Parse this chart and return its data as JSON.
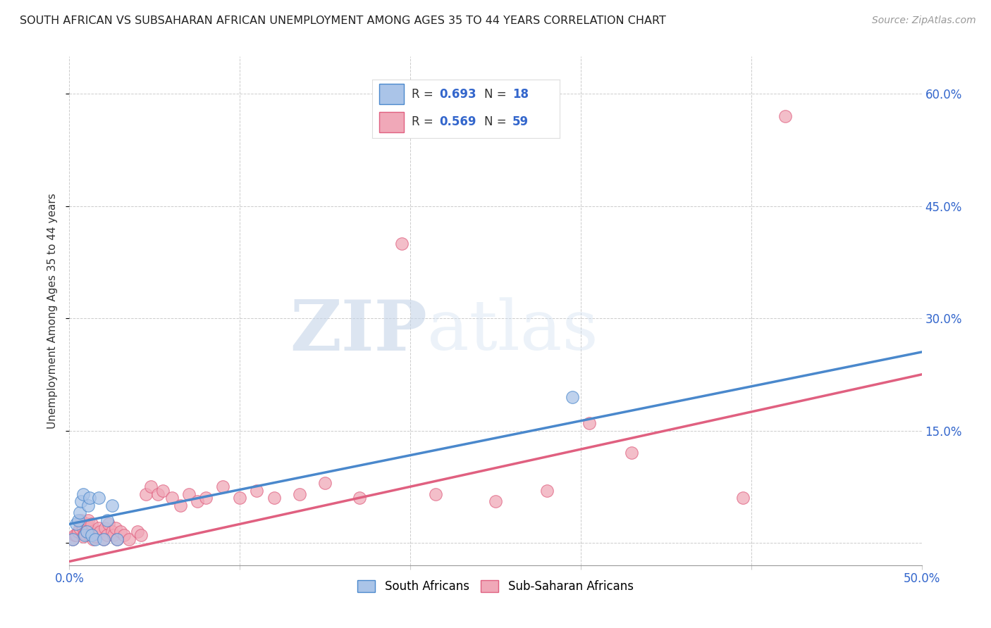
{
  "title": "SOUTH AFRICAN VS SUBSAHARAN AFRICAN UNEMPLOYMENT AMONG AGES 35 TO 44 YEARS CORRELATION CHART",
  "source": "Source: ZipAtlas.com",
  "ylabel": "Unemployment Among Ages 35 to 44 years",
  "xlim": [
    0.0,
    0.5
  ],
  "ylim": [
    -0.03,
    0.65
  ],
  "south_african_color": "#aac4e8",
  "sub_saharan_color": "#f0a8b8",
  "blue_line_color": "#4a88cc",
  "pink_line_color": "#e06080",
  "R_sa": "0.693",
  "N_sa": "18",
  "R_ss": "0.569",
  "N_ss": "59",
  "legend_label_sa": "South Africans",
  "legend_label_ss": "Sub-Saharan Africans",
  "watermark_zip": "ZIP",
  "watermark_atlas": "atlas",
  "background_color": "#ffffff",
  "sa_line_slope": 0.46,
  "sa_line_intercept": 0.025,
  "ss_line_slope": 0.5,
  "ss_line_intercept": -0.025,
  "south_african_x": [
    0.002,
    0.004,
    0.005,
    0.006,
    0.007,
    0.008,
    0.009,
    0.01,
    0.011,
    0.012,
    0.013,
    0.015,
    0.017,
    0.02,
    0.022,
    0.025,
    0.028,
    0.295
  ],
  "south_african_y": [
    0.005,
    0.025,
    0.03,
    0.04,
    0.055,
    0.065,
    0.01,
    0.015,
    0.05,
    0.06,
    0.01,
    0.005,
    0.06,
    0.005,
    0.03,
    0.05,
    0.005,
    0.195
  ],
  "sub_saharan_x": [
    0.002,
    0.003,
    0.004,
    0.005,
    0.006,
    0.007,
    0.007,
    0.008,
    0.008,
    0.009,
    0.01,
    0.01,
    0.011,
    0.011,
    0.012,
    0.013,
    0.013,
    0.014,
    0.015,
    0.016,
    0.017,
    0.018,
    0.02,
    0.021,
    0.022,
    0.023,
    0.025,
    0.026,
    0.027,
    0.028,
    0.03,
    0.032,
    0.035,
    0.04,
    0.042,
    0.045,
    0.048,
    0.052,
    0.055,
    0.06,
    0.065,
    0.07,
    0.075,
    0.08,
    0.09,
    0.1,
    0.11,
    0.12,
    0.135,
    0.15,
    0.17,
    0.195,
    0.215,
    0.25,
    0.28,
    0.305,
    0.33,
    0.395,
    0.42
  ],
  "sub_saharan_y": [
    0.005,
    0.01,
    0.01,
    0.015,
    0.02,
    0.025,
    0.03,
    0.008,
    0.02,
    0.012,
    0.015,
    0.025,
    0.02,
    0.03,
    0.01,
    0.015,
    0.025,
    0.005,
    0.008,
    0.012,
    0.02,
    0.015,
    0.005,
    0.02,
    0.01,
    0.025,
    0.015,
    0.01,
    0.02,
    0.005,
    0.015,
    0.01,
    0.005,
    0.015,
    0.01,
    0.065,
    0.075,
    0.065,
    0.07,
    0.06,
    0.05,
    0.065,
    0.055,
    0.06,
    0.075,
    0.06,
    0.07,
    0.06,
    0.065,
    0.08,
    0.06,
    0.4,
    0.065,
    0.055,
    0.07,
    0.16,
    0.12,
    0.06,
    0.57
  ]
}
